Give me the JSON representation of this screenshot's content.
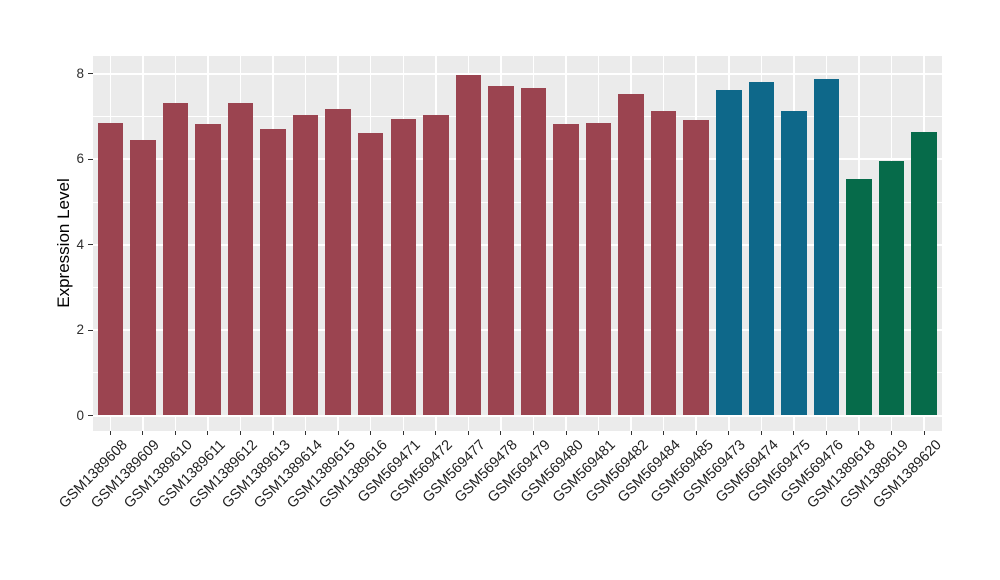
{
  "chart_data": {
    "type": "bar",
    "title": "",
    "xlabel": "",
    "ylabel": "Expression Level",
    "categories": [
      "GSM1389608",
      "GSM1389609",
      "GSM1389610",
      "GSM1389611",
      "GSM1389612",
      "GSM1389613",
      "GSM1389614",
      "GSM1389615",
      "GSM1389616",
      "GSM569471",
      "GSM569472",
      "GSM569477",
      "GSM569478",
      "GSM569479",
      "GSM569480",
      "GSM569481",
      "GSM569482",
      "GSM569484",
      "GSM569485",
      "GSM569473",
      "GSM569474",
      "GSM569475",
      "GSM569476",
      "GSM1389618",
      "GSM1389619",
      "GSM1389620"
    ],
    "values": [
      6.85,
      6.45,
      7.32,
      6.83,
      7.33,
      6.72,
      7.03,
      7.17,
      6.61,
      6.95,
      7.04,
      7.98,
      7.71,
      7.68,
      6.82,
      6.85,
      7.53,
      7.14,
      6.93,
      7.63,
      7.82,
      7.14,
      7.89,
      5.53,
      5.95,
      6.64
    ],
    "colors": [
      "#9B4450",
      "#9B4450",
      "#9B4450",
      "#9B4450",
      "#9B4450",
      "#9B4450",
      "#9B4450",
      "#9B4450",
      "#9B4450",
      "#9B4450",
      "#9B4450",
      "#9B4450",
      "#9B4450",
      "#9B4450",
      "#9B4450",
      "#9B4450",
      "#9B4450",
      "#9B4450",
      "#9B4450",
      "#0E688A",
      "#0E688A",
      "#0E688A",
      "#0E688A",
      "#066B4A",
      "#066B4A",
      "#066B4A"
    ],
    "group_colors": {
      "group1": "#9B4450",
      "group2": "#0E688A",
      "group3": "#066B4A"
    },
    "yticks": [
      0,
      2,
      4,
      6,
      8
    ],
    "minor_gridlines": [
      1,
      3,
      5,
      7
    ],
    "ylim": [
      0,
      8.42
    ],
    "grid": true,
    "legend": false,
    "panel_bg": "#EBEBEB",
    "grid_color": "#FFFFFF"
  }
}
